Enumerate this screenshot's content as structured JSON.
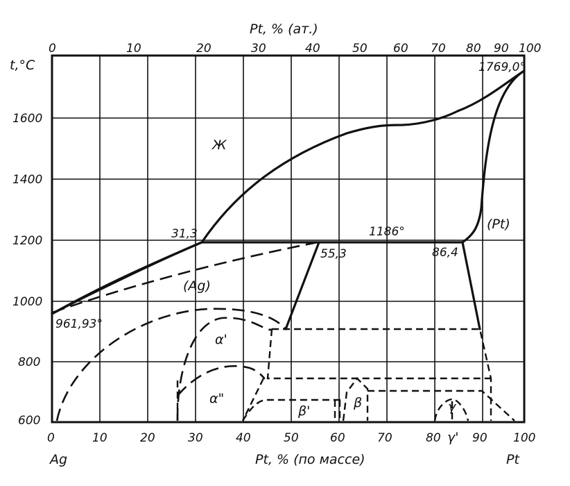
{
  "title_top": "Pt, % (ат.)",
  "y_axis_label": "t,°C",
  "x_axis_label": "Pt, % (по массе)",
  "left_element": "Ag",
  "right_element": "Pt",
  "top_ticks": [
    "0",
    "10",
    "20",
    "30",
    "40",
    "50",
    "60",
    "70",
    "80",
    "90",
    "100"
  ],
  "bottom_ticks": [
    "0",
    "10",
    "20",
    "30",
    "40",
    "50",
    "60",
    "70",
    "80",
    "90",
    "100"
  ],
  "y_ticks": [
    "1600",
    "1400",
    "1200",
    "1000",
    "800",
    "600"
  ],
  "annotations": {
    "liquid": "Ж",
    "pt_melt": "1769,0°",
    "ag_melt": "961,93°",
    "eutectic_left": "31,3",
    "peritectic_temp": "1186°",
    "point_553": "55,3",
    "point_864": "86,4",
    "pt_solid": "(Pt)",
    "ag_solid": "(Ag)",
    "alpha1": "α'",
    "alpha2": "α\"",
    "beta": "β",
    "beta1": "β'",
    "gamma": "γ",
    "gamma1": "γ'"
  },
  "chart_data": {
    "type": "phase-diagram",
    "x_unit": "Pt, % (по массе)",
    "y_unit": "t,°C",
    "xlim": [
      0,
      100
    ],
    "ylim": [
      600,
      1800
    ],
    "melting_points": [
      {
        "element": "Ag",
        "x": 0,
        "t": 961.93
      },
      {
        "element": "Pt",
        "x": 100,
        "t": 1769.0
      }
    ],
    "invariant_line": {
      "t": 1186,
      "points": [
        31.3,
        55.3,
        86.4
      ]
    }
  }
}
